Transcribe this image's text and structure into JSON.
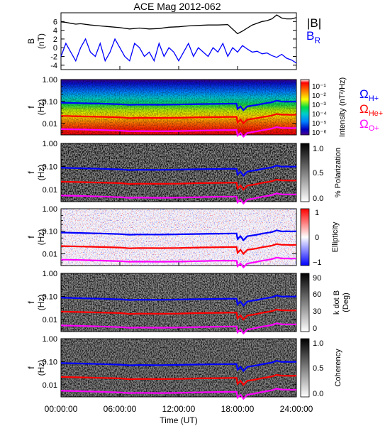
{
  "chart_data": {
    "type": "heatmap",
    "title": "ACE Mag 2012-062",
    "xlabel": "Time (UT)",
    "x_ticks": [
      "00:00:00",
      "06:00:00",
      "12:00:00",
      "18:00:00",
      "24:00:00"
    ],
    "xlim_hours": [
      0,
      24
    ],
    "panels": [
      {
        "id": "b",
        "kind": "line",
        "ylabel": [
          "B",
          "(nT)"
        ],
        "ylim": [
          -5,
          8
        ],
        "y_ticks": [
          -4,
          -2,
          0,
          2,
          4,
          6
        ],
        "legend": [
          {
            "label": "|B|",
            "color": "#000000"
          },
          {
            "label": "B",
            "sub": "R",
            "color": "#0000ff"
          }
        ],
        "series": [
          {
            "name": "|B|",
            "color": "#000000",
            "x": [
              0,
              0.5,
              1,
              1.5,
              2,
              3,
              4,
              5,
              6,
              7,
              8,
              9,
              10,
              11,
              12,
              13,
              14,
              15,
              16,
              17,
              18,
              18.5,
              19,
              19.5,
              20,
              20.5,
              21,
              21.5,
              22,
              22.5,
              23,
              23.5,
              24
            ],
            "y": [
              5.9,
              5.8,
              5.6,
              5.4,
              5.5,
              5.2,
              5.0,
              4.8,
              4.6,
              4.3,
              4.5,
              4.3,
              4.4,
              4.7,
              4.8,
              5.0,
              5.1,
              5.2,
              5.2,
              5.3,
              3.2,
              3.8,
              4.5,
              5.2,
              5.6,
              6.0,
              6.2,
              6.6,
              7.5,
              6.8,
              6.6,
              6.6,
              6.9
            ]
          },
          {
            "name": "B_R",
            "color": "#0000ff",
            "x": [
              0,
              0.5,
              1,
              1.5,
              2,
              2.5,
              3,
              3.5,
              4,
              4.5,
              5,
              5.5,
              6,
              6.5,
              7,
              7.5,
              8,
              8.5,
              9,
              9.5,
              10,
              10.5,
              11,
              11.5,
              12,
              12.5,
              13,
              13.5,
              14,
              14.5,
              15,
              15.5,
              16,
              16.5,
              17,
              17.5,
              18,
              18.5,
              19,
              19.5,
              20,
              20.5,
              21,
              21.5,
              22,
              22.5,
              23,
              23.5,
              24
            ],
            "y": [
              -2,
              1,
              -1,
              -3,
              0,
              2,
              -1,
              -2,
              1,
              -3,
              -1,
              2,
              0,
              -2,
              -3,
              1,
              0,
              -2,
              -1,
              -3,
              1,
              -2,
              0,
              -1,
              -3,
              -1,
              1,
              -2,
              0,
              -1,
              -2,
              0,
              -1,
              1,
              -2,
              0,
              -1,
              0.5,
              -0.3,
              -1,
              -0.8,
              -1.4,
              -1.2,
              -1.8,
              -2.2,
              -1.5,
              -2.4,
              -2.8,
              -3.5
            ]
          }
        ]
      },
      {
        "id": "intensity",
        "kind": "spectrogram",
        "ylabel": [
          "f",
          "(Hz)"
        ],
        "ylim_log": [
          0.003,
          1.0
        ],
        "y_ticks": [
          "1.00",
          "0.10",
          "0.01"
        ],
        "colorbar": {
          "label": "Intensity (nT²/Hz)",
          "ticks": [
            "10⁻¹",
            "10⁻²",
            "10⁻³",
            "10⁻⁴",
            "10⁻⁵",
            "10⁻⁶"
          ],
          "colors": [
            "#ffffff",
            "#ff0000",
            "#ff8800",
            "#ffff00",
            "#00dd44",
            "#00cccc",
            "#0080ff",
            "#0000c0",
            "#4b0090"
          ]
        },
        "legend": [
          {
            "symbol": "Ω",
            "sub": "H+",
            "color": "#0000ff"
          },
          {
            "symbol": "Ω",
            "sub": "He+",
            "color": "#ff0000"
          },
          {
            "symbol": "Ω",
            "sub": "O+",
            "color": "#ff00ff"
          }
        ]
      },
      {
        "id": "polarization",
        "kind": "spectrogram",
        "ylabel": [
          "f",
          "(Hz)"
        ],
        "y_ticks": [
          "1.00",
          "0.10",
          "0.01"
        ],
        "colorbar": {
          "label": "% Polarization",
          "ticks": [
            "1.0",
            "0.5",
            "0.0"
          ],
          "colors": [
            "#000000",
            "#ffffff"
          ]
        }
      },
      {
        "id": "ellipticity",
        "kind": "spectrogram",
        "ylabel": [
          "f",
          "(Hz)"
        ],
        "y_ticks": [
          "1.00",
          "0.10",
          "0.01"
        ],
        "colorbar": {
          "label": "Ellipticity",
          "ticks": [
            "1",
            "0",
            "−1"
          ],
          "colors": [
            "#ff0000",
            "#ffffff",
            "#0000ff"
          ]
        }
      },
      {
        "id": "kdotb",
        "kind": "spectrogram",
        "ylabel": [
          "f",
          "(Hz)"
        ],
        "y_ticks": [
          "1.00",
          "0.10",
          "0.01"
        ],
        "colorbar": {
          "label": "k dot B",
          "label2": "(Deg)",
          "ticks": [
            "90",
            "60",
            "30",
            "0"
          ],
          "colors": [
            "#000000",
            "#ffffff"
          ]
        }
      },
      {
        "id": "coherency",
        "kind": "spectrogram",
        "ylabel": [
          "f",
          "(Hz)"
        ],
        "y_ticks": [
          "1.00",
          "0.10",
          "0.01"
        ],
        "colorbar": {
          "label": "Coherency",
          "ticks": [
            "1.0",
            "0.5",
            "0.0"
          ],
          "colors": [
            "#000000",
            "#ffffff"
          ]
        }
      }
    ],
    "gyrofrequency_lines": [
      {
        "name": "H+",
        "color": "#0000ff",
        "x": [
          0,
          2,
          4,
          6,
          7,
          8,
          10,
          12,
          14,
          16,
          17.9,
          18,
          18.3,
          18.6,
          19,
          19.5,
          20,
          20.5,
          21,
          21.5,
          22,
          22.5,
          23,
          23.5,
          24
        ],
        "y_hz": [
          0.088,
          0.084,
          0.08,
          0.075,
          0.07,
          0.072,
          0.071,
          0.073,
          0.076,
          0.078,
          0.08,
          0.045,
          0.06,
          0.04,
          0.06,
          0.065,
          0.07,
          0.078,
          0.085,
          0.092,
          0.11,
          0.098,
          0.1,
          0.098,
          0.1
        ]
      },
      {
        "name": "He+",
        "color": "#ff0000",
        "x": [
          0,
          2,
          4,
          6,
          7,
          8,
          10,
          12,
          14,
          16,
          17.9,
          18,
          18.3,
          18.6,
          19,
          19.5,
          20,
          20.5,
          21,
          21.5,
          22,
          22.5,
          23,
          23.5,
          24
        ],
        "y_hz": [
          0.022,
          0.021,
          0.02,
          0.019,
          0.0175,
          0.018,
          0.0178,
          0.018,
          0.019,
          0.0195,
          0.02,
          0.011,
          0.015,
          0.01,
          0.015,
          0.016,
          0.0175,
          0.0195,
          0.021,
          0.023,
          0.027,
          0.025,
          0.025,
          0.0245,
          0.025
        ]
      },
      {
        "name": "O+",
        "color": "#ff00ff",
        "x": [
          0,
          2,
          4,
          6,
          7,
          8,
          10,
          12,
          14,
          16,
          17.9,
          18,
          18.3,
          18.6,
          19,
          19.5,
          20,
          20.5,
          21,
          21.5,
          22,
          22.5,
          23,
          23.5,
          24
        ],
        "y_hz": [
          0.0055,
          0.0053,
          0.005,
          0.0047,
          0.0044,
          0.0045,
          0.0044,
          0.0045,
          0.0047,
          0.0049,
          0.005,
          0.0028,
          0.0037,
          0.0025,
          0.0037,
          0.004,
          0.0044,
          0.0049,
          0.0053,
          0.0058,
          0.0068,
          0.0062,
          0.0062,
          0.0061,
          0.0062
        ]
      }
    ]
  }
}
